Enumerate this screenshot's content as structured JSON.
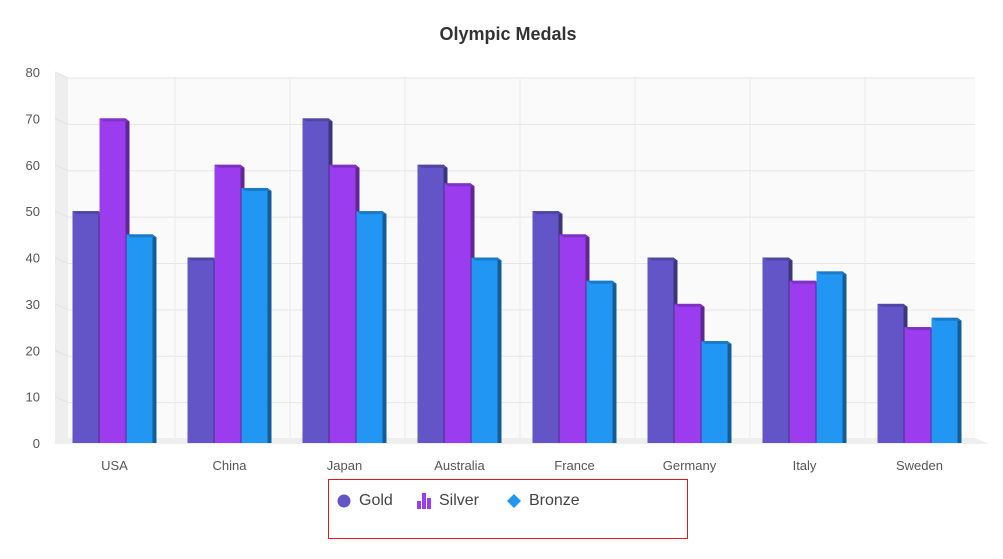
{
  "chart_data": {
    "type": "bar",
    "title": "Olympic Medals",
    "xlabel": "",
    "ylabel": "",
    "categories": [
      "USA",
      "China",
      "Japan",
      "Australia",
      "France",
      "Germany",
      "Italy",
      "Sweden"
    ],
    "series": [
      {
        "name": "Gold",
        "values": [
          50,
          40,
          70,
          60,
          50,
          40,
          40,
          30
        ],
        "color": "#6355C7"
      },
      {
        "name": "Silver",
        "values": [
          70,
          60,
          60,
          56,
          45,
          30,
          35,
          25
        ],
        "color": "#9B3DEF"
      },
      {
        "name": "Bronze",
        "values": [
          45,
          55,
          50,
          40,
          35,
          22,
          37,
          27
        ],
        "color": "#2196F3"
      }
    ],
    "ylim": [
      0,
      80
    ],
    "yticks": [
      "0",
      "10",
      "20",
      "30",
      "40",
      "50",
      "60",
      "70",
      "80"
    ],
    "grid": true,
    "legend_position": "bottom-center",
    "legend_icons": [
      "circle-icon",
      "bar-chart-icon",
      "diamond-icon"
    ]
  }
}
